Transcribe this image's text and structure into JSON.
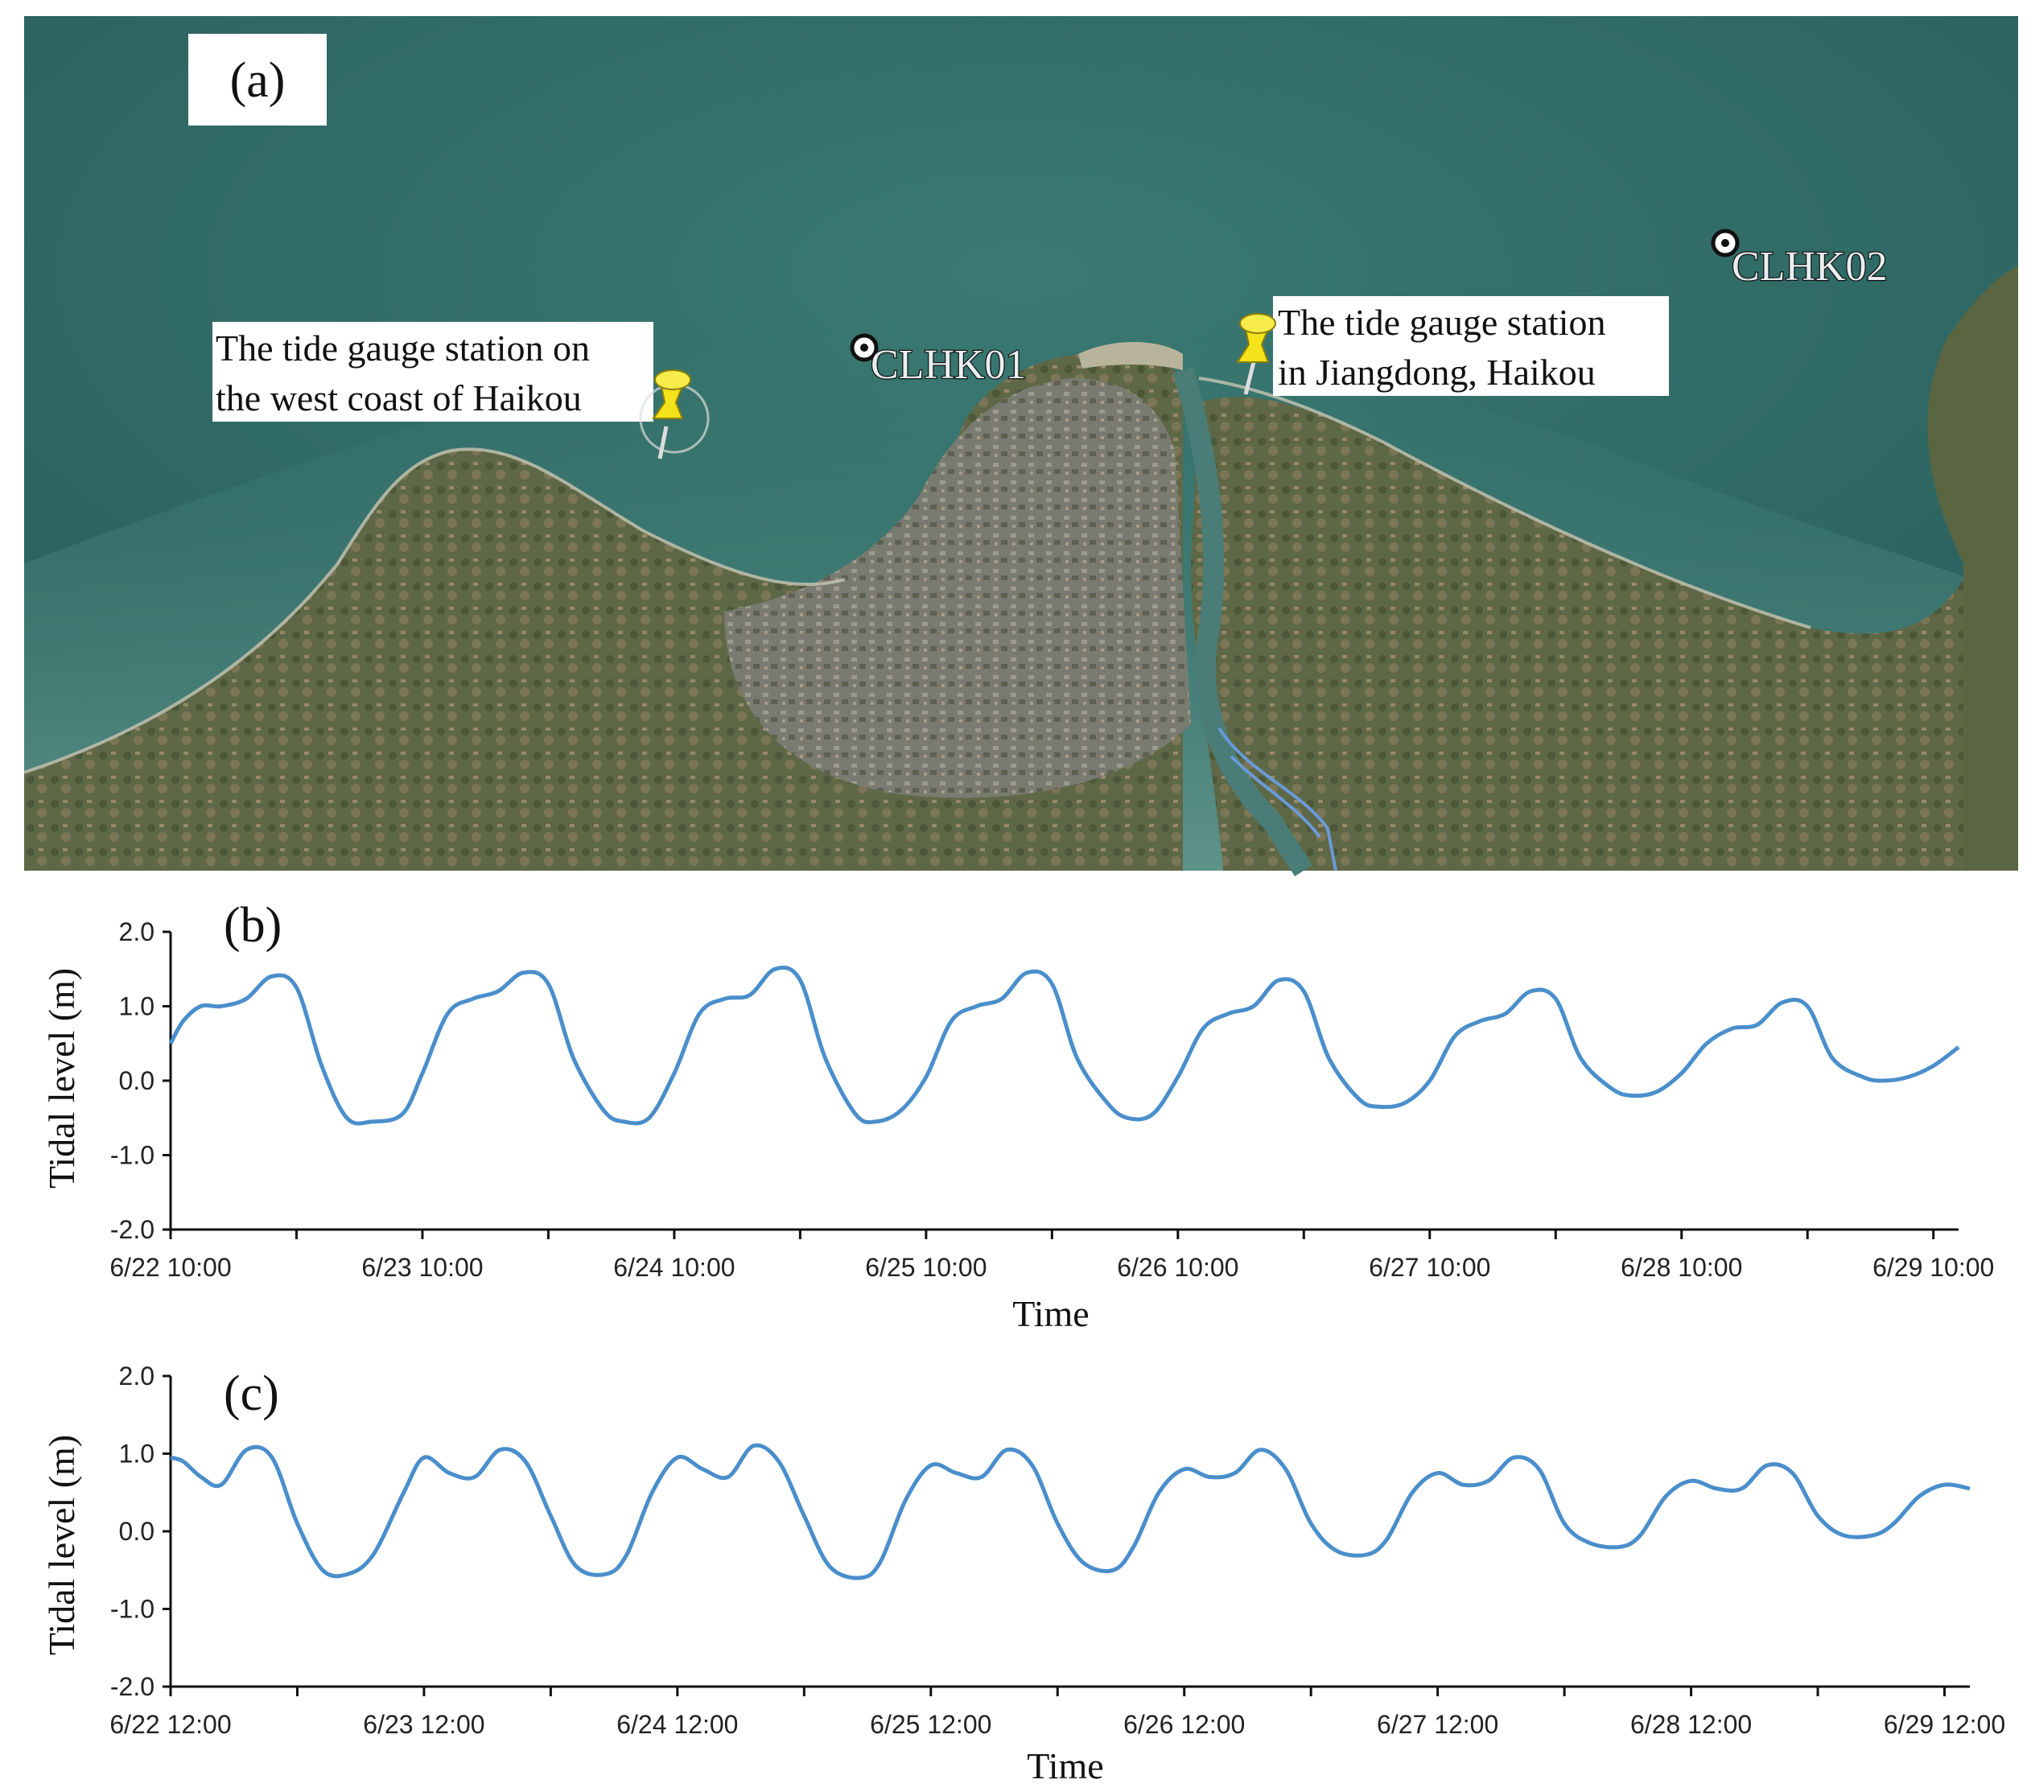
{
  "map": {
    "panel_label": "(a)",
    "callouts": [
      {
        "id": "west",
        "lines": [
          "The tide gauge station on",
          "the west coast of Haikou"
        ]
      },
      {
        "id": "east",
        "lines": [
          "The tide gauge station",
          "in Jiangdong, Haikou"
        ]
      }
    ],
    "stations": [
      {
        "id": "clhk01",
        "label": "CLHK01"
      },
      {
        "id": "clhk02",
        "label": "CLHK02"
      }
    ],
    "colors": {
      "sea": "#2f6b66",
      "land": "#6a6b4a",
      "city": "#7d7d74",
      "river_line": "#6a9ad8",
      "pin": "#f4e21a"
    }
  },
  "chart_data": [
    {
      "type": "line",
      "panel_label": "(b)",
      "xlabel": "Time",
      "ylabel": "Tidal level (m)",
      "ylim": [
        -2.0,
        2.0
      ],
      "yticks": [
        "2.0",
        "1.0",
        "0.0",
        "-1.0",
        "-2.0"
      ],
      "xticks": [
        "6/22 10:00",
        "6/23 10:00",
        "6/24 10:00",
        "6/25 10:00",
        "6/26 10:00",
        "6/27 10:00",
        "6/28 10:00",
        "6/29 10:00"
      ],
      "xlim_days": [
        0,
        7.1
      ],
      "color": "#4a8ecb",
      "series": [
        {
          "x": [
            0,
            0.05,
            0.12,
            0.2,
            0.3,
            0.4,
            0.5,
            0.6,
            0.7,
            0.8,
            0.92,
            1.0,
            1.1,
            1.2,
            1.3,
            1.4,
            1.5,
            1.6,
            1.72,
            1.8,
            1.9,
            2.0,
            2.1,
            2.2,
            2.3,
            2.4,
            2.5,
            2.6,
            2.72,
            2.8,
            2.9,
            3.0,
            3.1,
            3.2,
            3.3,
            3.4,
            3.5,
            3.6,
            3.72,
            3.8,
            3.9,
            4.0,
            4.1,
            4.2,
            4.3,
            4.4,
            4.5,
            4.6,
            4.72,
            4.8,
            4.9,
            5.0,
            5.1,
            5.2,
            5.3,
            5.4,
            5.5,
            5.6,
            5.72,
            5.8,
            5.9,
            6.0,
            6.1,
            6.2,
            6.3,
            6.4,
            6.5,
            6.6,
            6.72,
            6.8,
            6.9,
            7.0,
            7.1
          ],
          "y": [
            0.5,
            0.8,
            1.0,
            1.0,
            1.1,
            1.4,
            1.25,
            0.2,
            -0.5,
            -0.55,
            -0.45,
            0.1,
            0.9,
            1.1,
            1.2,
            1.45,
            1.3,
            0.3,
            -0.4,
            -0.55,
            -0.5,
            0.1,
            0.9,
            1.1,
            1.15,
            1.5,
            1.35,
            0.3,
            -0.45,
            -0.55,
            -0.4,
            0.05,
            0.8,
            1.0,
            1.1,
            1.45,
            1.3,
            0.3,
            -0.3,
            -0.5,
            -0.45,
            0.05,
            0.7,
            0.9,
            1.0,
            1.35,
            1.2,
            0.3,
            -0.25,
            -0.35,
            -0.3,
            0.0,
            0.6,
            0.8,
            0.9,
            1.2,
            1.1,
            0.3,
            -0.1,
            -0.2,
            -0.15,
            0.1,
            0.5,
            0.7,
            0.75,
            1.05,
            1.0,
            0.3,
            0.05,
            0.0,
            0.05,
            0.2,
            0.45
          ]
        }
      ]
    },
    {
      "type": "line",
      "panel_label": "(c)",
      "xlabel": "Time",
      "ylabel": "Tidal level (m)",
      "ylim": [
        -2.0,
        2.0
      ],
      "yticks": [
        "2.0",
        "1.0",
        "0.0",
        "-1.0",
        "-2.0"
      ],
      "xticks": [
        "6/22 12:00",
        "6/23 12:00",
        "6/24 12:00",
        "6/25 12:00",
        "6/26 12:00",
        "6/27 12:00",
        "6/28 12:00",
        "6/29 12:00"
      ],
      "xlim_days": [
        0,
        7.1
      ],
      "color": "#4a8ecb",
      "series": [
        {
          "x": [
            0,
            0.05,
            0.12,
            0.2,
            0.3,
            0.4,
            0.5,
            0.6,
            0.7,
            0.8,
            0.92,
            1.0,
            1.1,
            1.2,
            1.3,
            1.4,
            1.5,
            1.6,
            1.72,
            1.8,
            1.9,
            2.0,
            2.1,
            2.2,
            2.3,
            2.4,
            2.5,
            2.6,
            2.72,
            2.8,
            2.9,
            3.0,
            3.1,
            3.2,
            3.3,
            3.4,
            3.5,
            3.6,
            3.72,
            3.8,
            3.9,
            4.0,
            4.1,
            4.2,
            4.3,
            4.4,
            4.5,
            4.6,
            4.72,
            4.8,
            4.9,
            5.0,
            5.1,
            5.2,
            5.3,
            5.4,
            5.5,
            5.6,
            5.72,
            5.8,
            5.9,
            6.0,
            6.1,
            6.2,
            6.3,
            6.4,
            6.5,
            6.6,
            6.72,
            6.8,
            6.9,
            7.0,
            7.1
          ],
          "y": [
            0.95,
            0.9,
            0.7,
            0.6,
            1.05,
            0.95,
            0.1,
            -0.5,
            -0.55,
            -0.3,
            0.5,
            0.95,
            0.75,
            0.7,
            1.05,
            0.9,
            0.2,
            -0.45,
            -0.55,
            -0.3,
            0.5,
            0.95,
            0.8,
            0.7,
            1.1,
            0.9,
            0.2,
            -0.45,
            -0.6,
            -0.4,
            0.4,
            0.85,
            0.75,
            0.7,
            1.05,
            0.85,
            0.1,
            -0.4,
            -0.5,
            -0.2,
            0.5,
            0.8,
            0.7,
            0.75,
            1.05,
            0.8,
            0.1,
            -0.25,
            -0.3,
            -0.1,
            0.5,
            0.75,
            0.6,
            0.65,
            0.95,
            0.8,
            0.1,
            -0.15,
            -0.2,
            -0.05,
            0.45,
            0.65,
            0.55,
            0.55,
            0.85,
            0.75,
            0.2,
            -0.05,
            -0.05,
            0.1,
            0.45,
            0.6,
            0.55
          ]
        }
      ]
    }
  ]
}
